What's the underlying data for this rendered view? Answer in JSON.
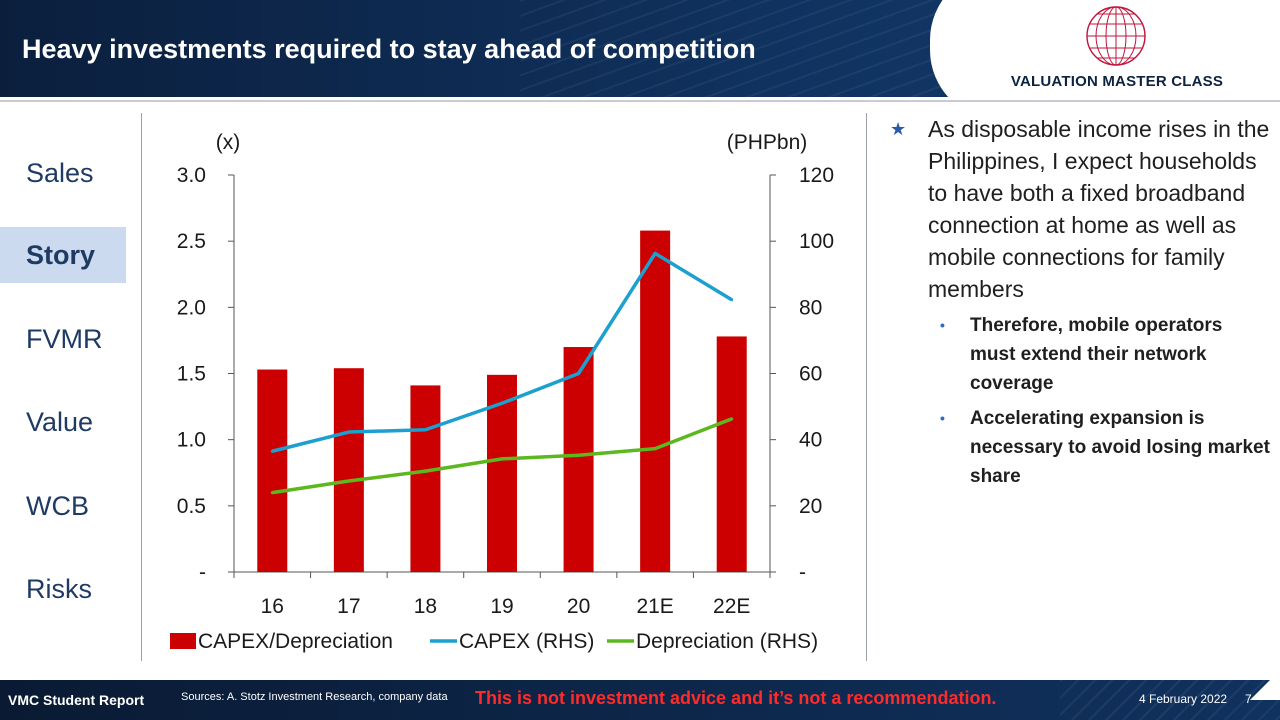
{
  "header": {
    "title": "Heavy investments required to stay ahead of competition",
    "logo_text": "VALUATION MASTER CLASS"
  },
  "nav": {
    "items": [
      "Sales",
      "Story",
      "FVMR",
      "Value",
      "WCB",
      "Risks"
    ],
    "active": "Story"
  },
  "chart_data": {
    "type": "bar",
    "categories": [
      "16",
      "17",
      "18",
      "19",
      "20",
      "21E",
      "22E"
    ],
    "series": [
      {
        "name": "CAPEX/Depreciation",
        "type": "bar",
        "axis": "left",
        "color": "#cc0000",
        "values": [
          1.53,
          1.54,
          1.41,
          1.49,
          1.7,
          2.58,
          1.78
        ]
      },
      {
        "name": "CAPEX (RHS)",
        "type": "line",
        "axis": "right",
        "color": "#1ba0d0",
        "values": [
          36.5,
          42.3,
          43.0,
          51.0,
          60.0,
          96.3,
          82.3
        ]
      },
      {
        "name": "Depreciation (RHS)",
        "type": "line",
        "axis": "right",
        "color": "#5cb81e",
        "values": [
          24.0,
          27.5,
          30.5,
          34.2,
          35.3,
          37.3,
          46.3
        ]
      }
    ],
    "left_axis": {
      "unit_label": "(x)",
      "ylim": [
        0,
        3.0
      ],
      "ticks": [
        "-",
        "0.5",
        "1.0",
        "1.5",
        "2.0",
        "2.5",
        "3.0"
      ]
    },
    "right_axis": {
      "unit_label": "(PHPbn)",
      "ylim": [
        0,
        120
      ],
      "ticks": [
        "-",
        "20",
        "40",
        "60",
        "80",
        "100",
        "120"
      ]
    },
    "legend_position": "bottom",
    "grid": false
  },
  "bullets": {
    "main": "As disposable income rises in the Philippines, I expect households to have both a fixed broadband connection at home as well as mobile connections for family members",
    "subs": [
      "Therefore, mobile operators must extend their network coverage",
      "Accelerating expansion is necessary to avoid losing market share"
    ]
  },
  "footer": {
    "student": "VMC Student Report",
    "sources": "Sources: A. Stotz Investment Research, company data",
    "warning": "This is not investment advice and it’s not a recommendation.",
    "date": "4 February 2022",
    "page": "7"
  },
  "colors": {
    "header_bg": "#10325f",
    "nav_active_bg": "#ccdaf0",
    "nav_text": "#1f3a63",
    "warning": "#ff2a2a"
  }
}
